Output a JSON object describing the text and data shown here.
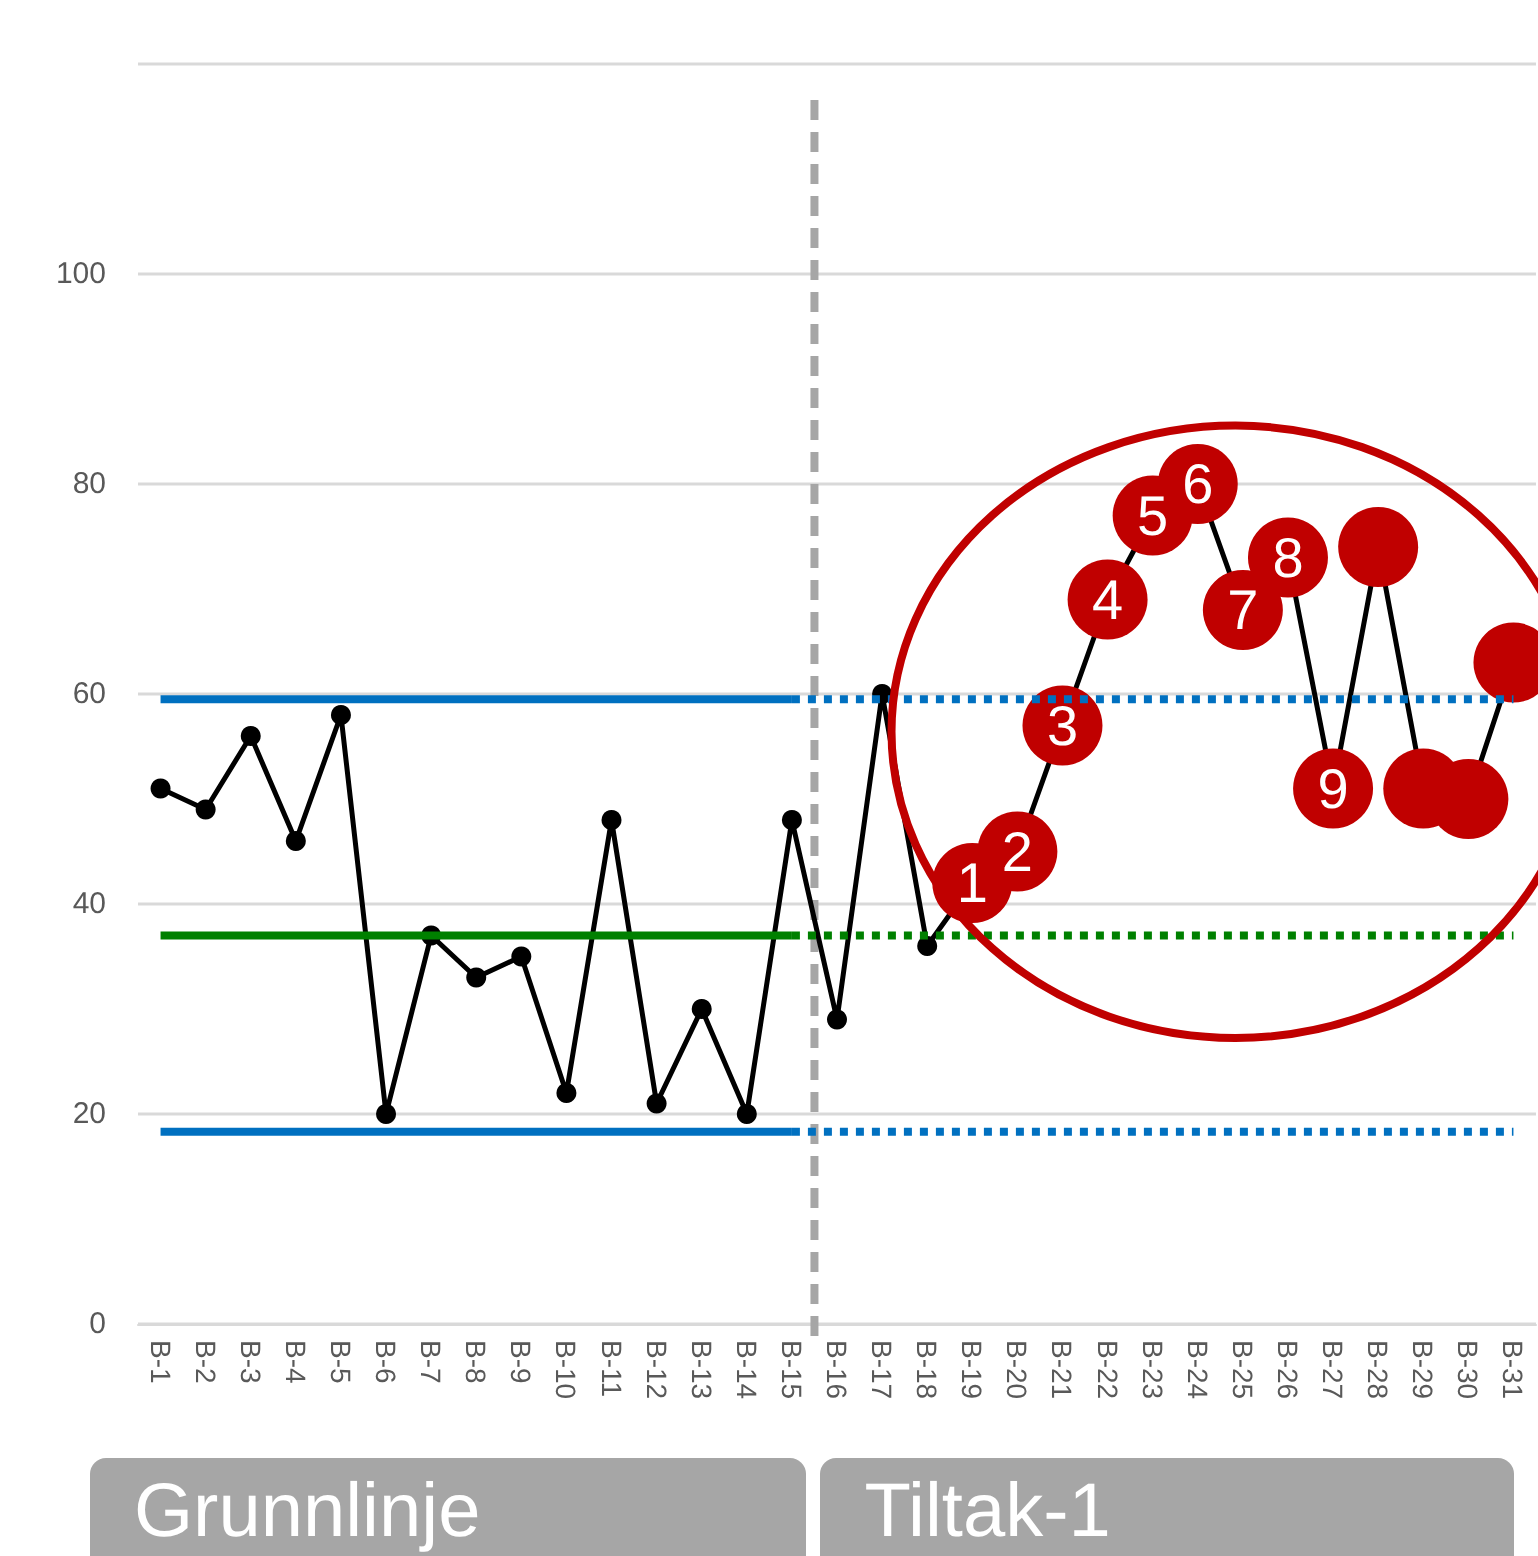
{
  "chart_data": {
    "type": "line",
    "categories": [
      "B-1",
      "B-2",
      "B-3",
      "B-4",
      "B-5",
      "B-6",
      "B-7",
      "B-8",
      "B-9",
      "B-10",
      "B-11",
      "B-12",
      "B-13",
      "B-14",
      "B-15",
      "B-16",
      "B-17",
      "B-18",
      "B-19",
      "B-20",
      "B-21",
      "B-22",
      "B-23",
      "B-24",
      "B-25",
      "B-26",
      "B-27",
      "B-28",
      "B-29",
      "B-30",
      "B-31"
    ],
    "series": [
      {
        "color": "#000000",
        "marker": "circle",
        "line_style": "solid",
        "values": [
          51,
          49,
          56,
          46,
          58,
          20,
          37,
          33,
          35,
          22,
          48,
          21,
          30,
          20,
          48,
          29,
          60,
          36,
          42,
          45,
          57,
          69,
          77,
          80,
          68,
          73,
          51,
          74,
          51,
          50,
          63
        ],
        "colors": [
          "#000000",
          "#000000",
          "#000000",
          "#000000",
          "#000000",
          "#000000",
          "#000000",
          "#000000",
          "#000000",
          "#000000",
          "#000000",
          "#000000",
          "#000000",
          "#000000",
          "#000000",
          "#000000",
          "#000000",
          "#000000",
          "#c00000",
          "#c00000",
          "#c00000",
          "#c00000",
          "#c00000",
          "#c00000",
          "#c00000",
          "#c00000",
          "#c00000",
          "#c00000",
          "#c00000",
          "#c00000",
          "#c00000"
        ]
      },
      {
        "color": "#0070c0",
        "marker": "none",
        "line_style": "solid",
        "values": [
          59.5,
          59.5,
          59.5,
          59.5,
          59.5,
          59.5,
          59.5,
          59.5,
          59.5,
          59.5,
          59.5,
          59.5,
          59.5,
          59.5,
          59.5,
          null,
          null,
          null,
          null,
          null,
          null,
          null,
          null,
          null,
          null,
          null,
          null,
          null,
          null,
          null,
          null
        ]
      },
      {
        "color": "#0070c0",
        "marker": "none",
        "line_style": "dotted",
        "values": [
          null,
          null,
          null,
          null,
          null,
          null,
          null,
          null,
          null,
          null,
          null,
          null,
          null,
          null,
          59.5,
          59.5,
          59.5,
          59.5,
          59.5,
          59.5,
          59.5,
          59.5,
          59.5,
          59.5,
          59.5,
          59.5,
          59.5,
          59.5,
          59.5,
          59.5,
          59.5
        ]
      },
      {
        "color": "#008000",
        "marker": "none",
        "line_style": "solid",
        "values": [
          37,
          37,
          37,
          37,
          37,
          37,
          37,
          37,
          37,
          37,
          37,
          37,
          37,
          37,
          37,
          null,
          null,
          null,
          null,
          null,
          null,
          null,
          null,
          null,
          null,
          null,
          null,
          null,
          null,
          null,
          null
        ]
      },
      {
        "color": "#008000",
        "marker": "none",
        "line_style": "dotted",
        "values": [
          null,
          null,
          null,
          null,
          null,
          null,
          null,
          null,
          null,
          null,
          null,
          null,
          null,
          null,
          37,
          37,
          37,
          37,
          37,
          37,
          37,
          37,
          37,
          37,
          37,
          37,
          37,
          37,
          37,
          37,
          37
        ]
      },
      {
        "color": "#0070c0",
        "marker": "none",
        "line_style": "solid",
        "values": [
          18.3,
          18.3,
          18.3,
          18.3,
          18.3,
          18.3,
          18.3,
          18.3,
          18.3,
          18.3,
          18.3,
          18.3,
          18.3,
          18.3,
          18.3,
          null,
          null,
          null,
          null,
          null,
          null,
          null,
          null,
          null,
          null,
          null,
          null,
          null,
          null,
          null,
          null
        ]
      },
      {
        "color": "#0070c0",
        "marker": "none",
        "line_style": "dotted",
        "values": [
          null,
          null,
          null,
          null,
          null,
          null,
          null,
          null,
          null,
          null,
          null,
          null,
          null,
          null,
          18.3,
          18.3,
          18.3,
          18.3,
          18.3,
          18.3,
          18.3,
          18.3,
          18.3,
          18.3,
          18.3,
          18.3,
          18.3,
          18.3,
          18.3,
          18.3,
          18.3
        ]
      }
    ],
    "ylim": [
      0,
      120
    ],
    "yticks": [
      0,
      20,
      40,
      60,
      80,
      100,
      {
        "value": 120,
        "label": null
      }
    ],
    "grid": "y",
    "ref_lines": [
      {
        "axis": "x",
        "value": "B-15",
        "color": "#a6a6a6",
        "line_style": "dashed"
      }
    ],
    "annotations": [
      "Grunnlinje",
      "Tiltak-1",
      {
        "text": "1",
        "x": "B-19",
        "y": 42
      },
      {
        "text": "2",
        "x": "B-20",
        "y": 45
      },
      {
        "text": "3",
        "x": "B-21",
        "y": 57
      },
      {
        "text": "4",
        "x": "B-22",
        "y": 69
      },
      {
        "text": "5",
        "x": "B-23",
        "y": 77
      },
      {
        "text": "6",
        "x": "B-24",
        "y": 80
      },
      {
        "text": "7",
        "x": "B-25",
        "y": 68
      },
      {
        "text": "8",
        "x": "B-26",
        "y": 73
      },
      {
        "text": "9",
        "x": "B-27",
        "y": 51
      }
    ]
  }
}
